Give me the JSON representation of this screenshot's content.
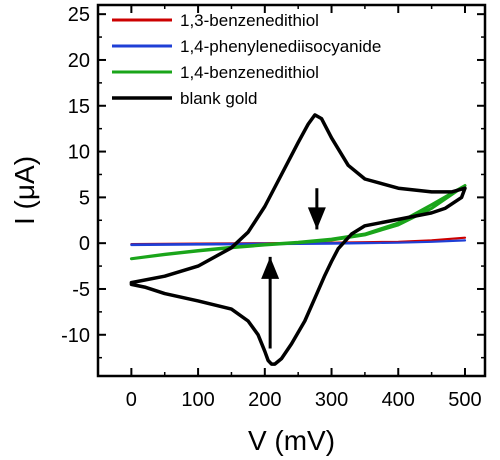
{
  "chart_data": {
    "type": "line",
    "title": "",
    "xlabel": "V  (mV)",
    "ylabel": "I  (μA)",
    "xlim": [
      -50,
      530
    ],
    "ylim": [
      -14.5,
      26
    ],
    "xticks": [
      0,
      100,
      200,
      300,
      400,
      500
    ],
    "yticks": [
      -10,
      -5,
      0,
      5,
      10,
      15,
      20,
      25
    ],
    "xtick_labels": [
      "0",
      "100",
      "200",
      "300",
      "400",
      "500"
    ],
    "ytick_labels": [
      "-10",
      "-5",
      "0",
      "5",
      "10",
      "15",
      "20",
      "25"
    ],
    "grid": false,
    "legend_position": "top-left",
    "series": [
      {
        "name": "1,3-benzenedithiol",
        "color": "#cc0000",
        "x": [
          0,
          100,
          200,
          300,
          400,
          450,
          500,
          450,
          400,
          300,
          200,
          100,
          0
        ],
        "y": [
          -0.1,
          -0.05,
          0.0,
          0.05,
          0.15,
          0.3,
          0.6,
          0.3,
          0.1,
          0.0,
          -0.05,
          -0.1,
          -0.15
        ]
      },
      {
        "name": "1,4-phenylenediisocyanide",
        "color": "#1f3fd6",
        "x": [
          0,
          100,
          200,
          300,
          400,
          450,
          500,
          450,
          400,
          300,
          200,
          100,
          0
        ],
        "y": [
          -0.15,
          -0.1,
          -0.05,
          0.0,
          0.05,
          0.15,
          0.3,
          0.15,
          0.05,
          -0.05,
          -0.1,
          -0.15,
          -0.2
        ]
      },
      {
        "name": "1,4-benzenedithiol",
        "color": "#1aa51a",
        "x": [
          0,
          50,
          100,
          150,
          200,
          250,
          300,
          350,
          400,
          450,
          500,
          450,
          400,
          350,
          300,
          250,
          200,
          150,
          100,
          50,
          0
        ],
        "y": [
          -1.7,
          -1.2,
          -0.8,
          -0.45,
          -0.15,
          0.1,
          0.45,
          1.0,
          2.2,
          4.2,
          6.3,
          3.8,
          2.0,
          0.9,
          0.35,
          0.05,
          -0.2,
          -0.5,
          -0.85,
          -1.25,
          -1.7
        ]
      },
      {
        "name": "blank gold",
        "color": "#000000",
        "x": [
          0,
          50,
          100,
          150,
          175,
          200,
          225,
          250,
          265,
          275,
          285,
          300,
          325,
          350,
          400,
          450,
          480,
          500,
          495,
          470,
          450,
          400,
          350,
          330,
          310,
          300,
          290,
          275,
          260,
          240,
          225,
          215,
          210,
          205,
          200,
          190,
          175,
          150,
          100,
          50,
          20,
          0,
          0
        ],
        "y": [
          -4.3,
          -3.6,
          -2.5,
          -0.5,
          1.2,
          4.0,
          7.5,
          11.0,
          13.0,
          14.0,
          13.6,
          11.5,
          8.5,
          7.0,
          6.0,
          5.6,
          5.6,
          6.0,
          5.0,
          3.8,
          3.3,
          2.6,
          1.9,
          1.0,
          -0.6,
          -2.0,
          -3.5,
          -6.0,
          -8.5,
          -11.0,
          -12.6,
          -13.2,
          -13.2,
          -12.8,
          -11.8,
          -10.0,
          -8.5,
          -7.2,
          -6.3,
          -5.5,
          -4.8,
          -4.5,
          -4.3
        ]
      }
    ],
    "annotations": [
      {
        "type": "arrow",
        "direction": "down",
        "x": 278,
        "y_from": 6.0,
        "y_to": 1.5
      },
      {
        "type": "arrow",
        "direction": "up",
        "x": 208,
        "y_from": -11.5,
        "y_to": -1.5
      }
    ]
  }
}
